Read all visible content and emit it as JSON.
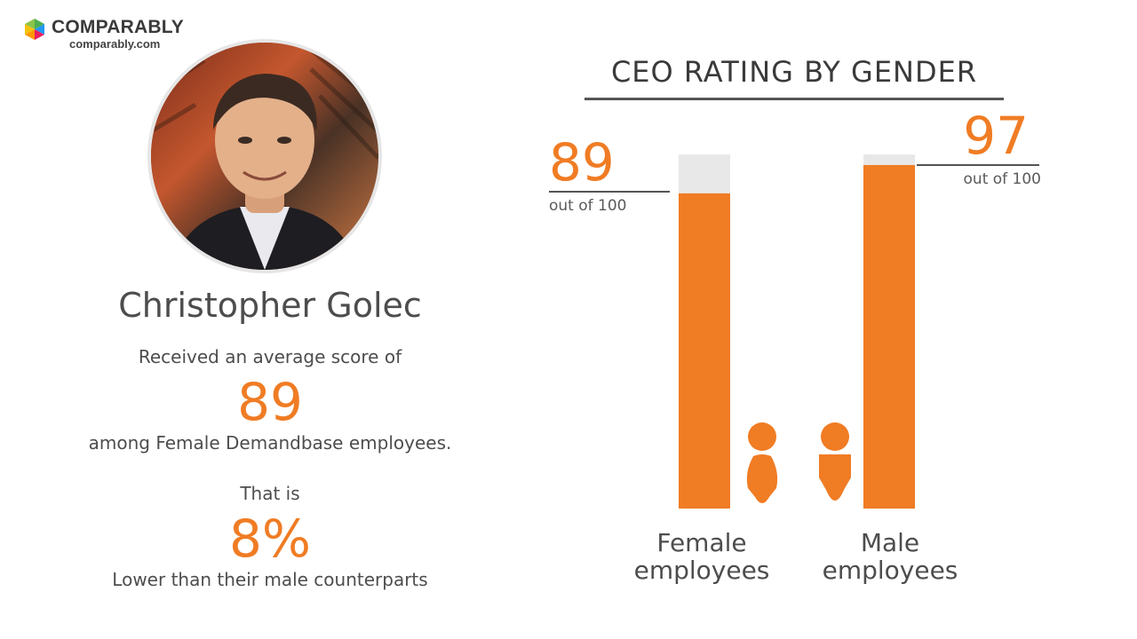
{
  "brand": {
    "name": "COMPARABLY",
    "url": "comparably.com",
    "colors": [
      "#4caf50",
      "#2196f3",
      "#e91e63",
      "#ff9800"
    ]
  },
  "person": {
    "name": "Christopher Golec",
    "line1": "Received an average score of",
    "score": "89",
    "line2": "among Female Demandbase employees.",
    "line3": "That is",
    "diff": "8%",
    "line4": "Lower than their male counterparts"
  },
  "colors": {
    "accent": "#f07c24",
    "track": "#e8e8e8"
  },
  "chart_data": {
    "type": "bar",
    "title": "CEO RATING BY GENDER",
    "categories": [
      "Female employees",
      "Male employees"
    ],
    "values": [
      89,
      97
    ],
    "value_labels": [
      "89",
      "97"
    ],
    "value_suffix": "out of 100",
    "ylim": [
      0,
      100
    ],
    "icons": [
      "female-icon",
      "male-icon"
    ]
  }
}
